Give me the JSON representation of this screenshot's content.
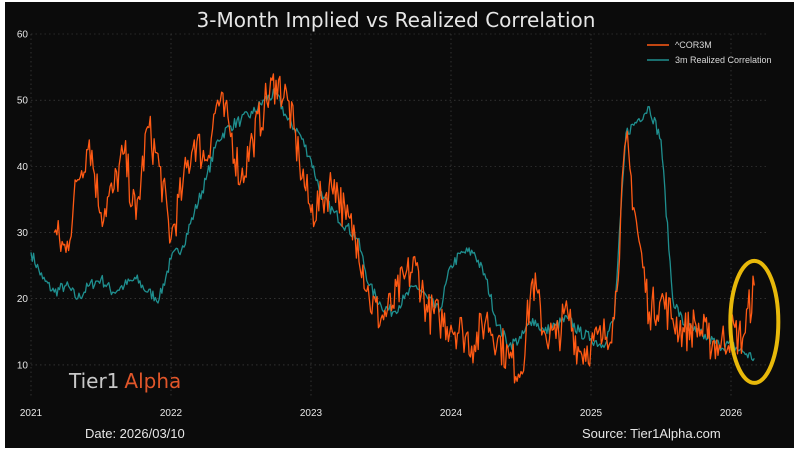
{
  "chart_data": {
    "type": "line",
    "title": "3-Month Implied vs Realized Correlation",
    "xlabel": "",
    "ylabel": "",
    "x_ticks": [
      "2021",
      "2022",
      "2023",
      "2024",
      "2025",
      "2026"
    ],
    "y_ticks": [
      10,
      20,
      30,
      40,
      50,
      60
    ],
    "ylim": [
      5,
      60
    ],
    "xlim": [
      "2021-01",
      "2026-04"
    ],
    "grid": true,
    "legend_position": "top-right",
    "series": [
      {
        "name": "^COR3M",
        "color": "#ff5a14",
        "points": [
          [
            "2021-03",
            30
          ],
          [
            "2021-04",
            27
          ],
          [
            "2021-05",
            38
          ],
          [
            "2021-06",
            44
          ],
          [
            "2021-07",
            33
          ],
          [
            "2021-08",
            36
          ],
          [
            "2021-09",
            42
          ],
          [
            "2021-10",
            32
          ],
          [
            "2021-11",
            46
          ],
          [
            "2021-12",
            40
          ],
          [
            "2022-01",
            29
          ],
          [
            "2022-02",
            37
          ],
          [
            "2022-03",
            44
          ],
          [
            "2022-04",
            41
          ],
          [
            "2022-05",
            50
          ],
          [
            "2022-06",
            46
          ],
          [
            "2022-07",
            38
          ],
          [
            "2022-08",
            44
          ],
          [
            "2022-09",
            49
          ],
          [
            "2022-10",
            53
          ],
          [
            "2022-11",
            50
          ],
          [
            "2022-12",
            41
          ],
          [
            "2023-01",
            33
          ],
          [
            "2023-02",
            35
          ],
          [
            "2023-03",
            38
          ],
          [
            "2023-04",
            32
          ],
          [
            "2023-05",
            29
          ],
          [
            "2023-06",
            20
          ],
          [
            "2023-07",
            17
          ],
          [
            "2023-08",
            19
          ],
          [
            "2023-09",
            23
          ],
          [
            "2023-10",
            25
          ],
          [
            "2023-11",
            18
          ],
          [
            "2023-12",
            17
          ],
          [
            "2024-01",
            16
          ],
          [
            "2024-02",
            15
          ],
          [
            "2024-03",
            13
          ],
          [
            "2024-04",
            17
          ],
          [
            "2024-05",
            14
          ],
          [
            "2024-06",
            11
          ],
          [
            "2024-07",
            9
          ],
          [
            "2024-08",
            23
          ],
          [
            "2024-09",
            15
          ],
          [
            "2024-10",
            14
          ],
          [
            "2024-11",
            18
          ],
          [
            "2024-12",
            12
          ],
          [
            "2025-01",
            13
          ],
          [
            "2025-02",
            14
          ],
          [
            "2025-03",
            17
          ],
          [
            "2025-04",
            44
          ],
          [
            "2025-05",
            30
          ],
          [
            "2025-06",
            18
          ],
          [
            "2025-07",
            20
          ],
          [
            "2025-08",
            17
          ],
          [
            "2025-09",
            15
          ],
          [
            "2025-10",
            16
          ],
          [
            "2025-11",
            14
          ],
          [
            "2025-12",
            13
          ],
          [
            "2026-01",
            15
          ],
          [
            "2026-02",
            14
          ],
          [
            "2026-03",
            22
          ]
        ]
      },
      {
        "name": "3m Realized Correlation",
        "color": "#1f8f8f",
        "points": [
          [
            "2021-01",
            27
          ],
          [
            "2021-02",
            23
          ],
          [
            "2021-03",
            21
          ],
          [
            "2021-04",
            22
          ],
          [
            "2021-05",
            20
          ],
          [
            "2021-06",
            22
          ],
          [
            "2021-07",
            23
          ],
          [
            "2021-08",
            21
          ],
          [
            "2021-09",
            22
          ],
          [
            "2021-10",
            23
          ],
          [
            "2021-11",
            21
          ],
          [
            "2021-12",
            20
          ],
          [
            "2022-01",
            26
          ],
          [
            "2022-02",
            28
          ],
          [
            "2022-03",
            33
          ],
          [
            "2022-04",
            38
          ],
          [
            "2022-05",
            44
          ],
          [
            "2022-06",
            46
          ],
          [
            "2022-07",
            47
          ],
          [
            "2022-08",
            48
          ],
          [
            "2022-09",
            50
          ],
          [
            "2022-10",
            51
          ],
          [
            "2022-11",
            47
          ],
          [
            "2022-12",
            45
          ],
          [
            "2023-01",
            41
          ],
          [
            "2023-02",
            35
          ],
          [
            "2023-03",
            33
          ],
          [
            "2023-04",
            31
          ],
          [
            "2023-05",
            29
          ],
          [
            "2023-06",
            22
          ],
          [
            "2023-07",
            19
          ],
          [
            "2023-08",
            18
          ],
          [
            "2023-09",
            20
          ],
          [
            "2023-10",
            22
          ],
          [
            "2023-11",
            20
          ],
          [
            "2023-12",
            18
          ],
          [
            "2024-01",
            25
          ],
          [
            "2024-02",
            27
          ],
          [
            "2024-03",
            27
          ],
          [
            "2024-04",
            23
          ],
          [
            "2024-05",
            16
          ],
          [
            "2024-06",
            13
          ],
          [
            "2024-07",
            14
          ],
          [
            "2024-08",
            17
          ],
          [
            "2024-09",
            15
          ],
          [
            "2024-10",
            16
          ],
          [
            "2024-11",
            17
          ],
          [
            "2024-12",
            15
          ],
          [
            "2025-01",
            14
          ],
          [
            "2025-02",
            13
          ],
          [
            "2025-03",
            17
          ],
          [
            "2025-04",
            45
          ],
          [
            "2025-05",
            47
          ],
          [
            "2025-06",
            49
          ],
          [
            "2025-07",
            44
          ],
          [
            "2025-08",
            20
          ],
          [
            "2025-09",
            16
          ],
          [
            "2025-10",
            15
          ],
          [
            "2025-11",
            14
          ],
          [
            "2025-12",
            13
          ],
          [
            "2026-01",
            13
          ],
          [
            "2026-02",
            12
          ],
          [
            "2026-03",
            11
          ]
        ]
      }
    ],
    "annotations": [
      {
        "type": "ellipse",
        "color": "#e8b90a",
        "x": "2026-03",
        "y": 16.5
      }
    ]
  },
  "brand": {
    "name_part1": "Tier1",
    "name_part2": "Alpha",
    "color1": "#c8c8c8",
    "color2": "#e0562a"
  },
  "footer": {
    "date": "Date: 2026/03/10",
    "source": "Source: Tier1Alpha.com"
  },
  "colors": {
    "background": "#0b0b0b",
    "grid": "#4a4a4a",
    "text": "#e6e6e6"
  }
}
